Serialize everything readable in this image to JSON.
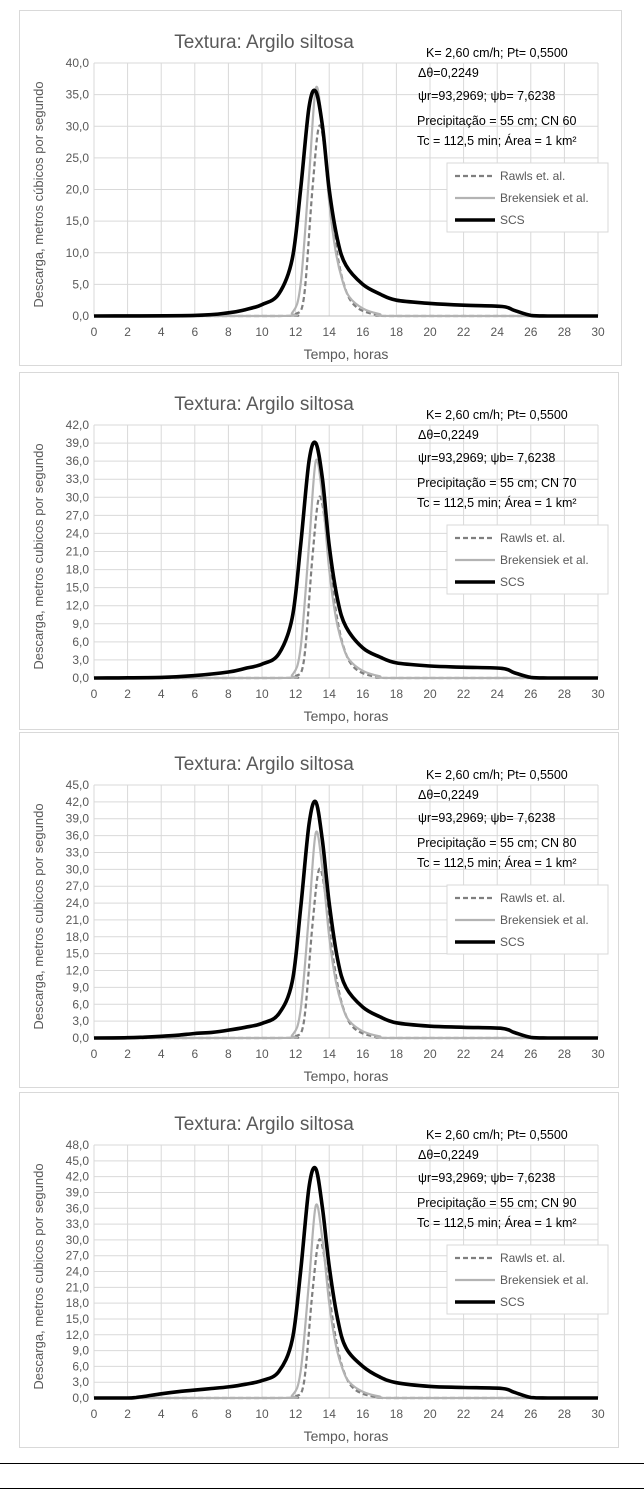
{
  "chart_data": [
    {
      "type": "line",
      "title": "Textura: Argilo siltosa",
      "xlabel": "Tempo, horas",
      "ylabel": "Descarga, metros cúbicos por segundo",
      "xlim": [
        0,
        30
      ],
      "ylim": [
        0,
        40
      ],
      "x_ticks": [
        "0",
        "2",
        "4",
        "6",
        "8",
        "10",
        "12",
        "14",
        "16",
        "18",
        "20",
        "22",
        "24",
        "26",
        "28",
        "30"
      ],
      "y_ticks": [
        "0,0",
        "5,0",
        "10,0",
        "15,0",
        "20,0",
        "25,0",
        "30,0",
        "35,0",
        "40,0"
      ],
      "grid": true,
      "legend_position": "right",
      "annotations": [
        "K= 2,60 cm/h; Pt= 0,5500",
        "Δθ=0,2249",
        "ψr=93,2969;  ψb= 7,6238",
        "Precipitação = 55 cm; CN 60",
        "Tc = 112,5 min; Área = 1 km²"
      ],
      "series": [
        {
          "name": "Rawls et. al.",
          "style": "dashed",
          "color": "#7f7f7f",
          "x": [
            0,
            11,
            12,
            12.5,
            13,
            13.4,
            13.8,
            14.2,
            14.6,
            15,
            15.4,
            16,
            17,
            18,
            30
          ],
          "y": [
            0,
            0,
            0.3,
            3,
            20,
            30,
            25,
            15,
            8,
            4,
            2,
            0.8,
            0.1,
            0,
            0
          ]
        },
        {
          "name": "Brekensiek et al.",
          "style": "solid",
          "color": "#b3b3b3",
          "x": [
            0,
            11,
            11.8,
            12.3,
            12.8,
            13.2,
            13.6,
            14,
            14.4,
            14.8,
            15.2,
            16,
            17,
            18,
            30
          ],
          "y": [
            0,
            0,
            0.5,
            5,
            22,
            36,
            30,
            18,
            10,
            5.5,
            3,
            1.2,
            0.3,
            0,
            0
          ]
        },
        {
          "name": "SCS",
          "style": "solid",
          "color": "#000000",
          "x": [
            0,
            6,
            8,
            9,
            10,
            11,
            11.8,
            12.3,
            12.8,
            13.2,
            13.6,
            14,
            14.5,
            15,
            16,
            17,
            18,
            20,
            22,
            24.3,
            25,
            26,
            27,
            30
          ],
          "y": [
            0,
            0.1,
            0.5,
            1,
            1.8,
            3.5,
            9,
            20,
            33,
            35.5,
            30,
            20,
            12,
            8,
            5,
            3.5,
            2.5,
            2,
            1.7,
            1.5,
            0.9,
            0.1,
            0,
            0
          ]
        }
      ]
    },
    {
      "type": "line",
      "title": "Textura: Argilo siltosa",
      "xlabel": "Tempo, horas",
      "ylabel": "Descarga, metros cubicos por segundo",
      "xlim": [
        0,
        30
      ],
      "ylim": [
        0,
        42
      ],
      "x_ticks": [
        "0",
        "2",
        "4",
        "6",
        "8",
        "10",
        "12",
        "14",
        "16",
        "18",
        "20",
        "22",
        "24",
        "26",
        "28",
        "30"
      ],
      "y_ticks": [
        "0,0",
        "3,0",
        "6,0",
        "9,0",
        "12,0",
        "15,0",
        "18,0",
        "21,0",
        "24,0",
        "27,0",
        "30,0",
        "33,0",
        "36,0",
        "39,0",
        "42,0"
      ],
      "grid": true,
      "legend_position": "right",
      "annotations": [
        "K= 2,60 cm/h; Pt= 0,5500",
        "Δθ=0,2249",
        "ψr=93,2969;  ψb= 7,6238",
        "Precipitação = 55 cm; CN 70",
        "Tc = 112,5 min; Área = 1 km²"
      ],
      "series": [
        {
          "name": "Rawls et. al.",
          "style": "dashed",
          "color": "#7f7f7f",
          "x": [
            0,
            11,
            12,
            12.5,
            13,
            13.4,
            13.8,
            14.2,
            14.6,
            15,
            15.4,
            16,
            17,
            18,
            30
          ],
          "y": [
            0,
            0,
            0.3,
            3,
            20,
            30,
            25,
            15,
            8,
            4,
            2,
            0.8,
            0.1,
            0,
            0
          ]
        },
        {
          "name": "Brekensiek et al.",
          "style": "solid",
          "color": "#b3b3b3",
          "x": [
            0,
            11,
            11.8,
            12.3,
            12.8,
            13.2,
            13.6,
            14,
            14.4,
            14.8,
            15.2,
            16,
            17,
            18,
            30
          ],
          "y": [
            0,
            0,
            0.5,
            5,
            22,
            36,
            30,
            18,
            10,
            5.5,
            3,
            1.2,
            0.3,
            0,
            0
          ]
        },
        {
          "name": "SCS",
          "style": "solid",
          "color": "#000000",
          "x": [
            0,
            4,
            6,
            8,
            9,
            10,
            11,
            11.8,
            12.3,
            12.8,
            13.2,
            13.6,
            14,
            14.5,
            15,
            16,
            17,
            18,
            20,
            22,
            24.3,
            25,
            26,
            27,
            30
          ],
          "y": [
            0,
            0.1,
            0.4,
            1,
            1.6,
            2.3,
            4,
            10,
            22,
            36,
            39,
            33,
            22,
            13,
            8.5,
            5,
            3.5,
            2.5,
            2,
            1.8,
            1.6,
            0.9,
            0.1,
            0,
            0
          ]
        }
      ]
    },
    {
      "type": "line",
      "title": "Textura: Argilo siltosa",
      "xlabel": "Tempo, horas",
      "ylabel": "Descarga, metros cubicos por segundo",
      "xlim": [
        0,
        30
      ],
      "ylim": [
        0,
        45
      ],
      "x_ticks": [
        "0",
        "2",
        "4",
        "6",
        "8",
        "10",
        "12",
        "14",
        "16",
        "18",
        "20",
        "22",
        "24",
        "26",
        "28",
        "30"
      ],
      "y_ticks": [
        "0,0",
        "3,0",
        "6,0",
        "9,0",
        "12,0",
        "15,0",
        "18,0",
        "21,0",
        "24,0",
        "27,0",
        "30,0",
        "33,0",
        "36,0",
        "39,0",
        "42,0",
        "45,0"
      ],
      "grid": true,
      "legend_position": "right",
      "annotations": [
        "K= 2,60 cm/h; Pt= 0,5500",
        "Δθ=0,2249",
        "ψr=93,2969;  ψb= 7,6238",
        "Precipitação = 55 cm; CN 80",
        "Tc = 112,5 min; Área = 1 km²"
      ],
      "series": [
        {
          "name": "Rawls et. al.",
          "style": "dashed",
          "color": "#7f7f7f",
          "x": [
            0,
            11,
            12,
            12.5,
            13,
            13.4,
            13.8,
            14.2,
            14.6,
            15,
            15.4,
            16,
            17,
            18,
            30
          ],
          "y": [
            0,
            0,
            0.3,
            3,
            20,
            30,
            25,
            15,
            8,
            4,
            2,
            0.8,
            0.1,
            0,
            0
          ]
        },
        {
          "name": "Brekensiek et al.",
          "style": "solid",
          "color": "#b3b3b3",
          "x": [
            0,
            11,
            11.8,
            12.3,
            12.8,
            13.2,
            13.6,
            14,
            14.4,
            14.8,
            15.2,
            16,
            17,
            18,
            30
          ],
          "y": [
            0,
            0,
            0.5,
            5,
            22,
            36.5,
            30,
            18,
            10,
            5.5,
            3,
            1.2,
            0.3,
            0,
            0
          ]
        },
        {
          "name": "SCS",
          "style": "solid",
          "color": "#000000",
          "x": [
            0,
            2,
            3,
            4,
            5,
            6,
            7,
            8,
            9,
            10,
            11,
            11.8,
            12.3,
            12.8,
            13.2,
            13.6,
            14,
            14.5,
            15,
            16,
            17,
            18,
            20,
            22,
            24.3,
            25,
            26,
            27,
            30
          ],
          "y": [
            0,
            0.05,
            0.15,
            0.3,
            0.5,
            0.8,
            1,
            1.4,
            1.9,
            2.6,
            4.3,
            10,
            23,
            38,
            42,
            35,
            24,
            14,
            9,
            5.5,
            3.8,
            2.7,
            2.1,
            1.9,
            1.7,
            1,
            0.1,
            0,
            0
          ]
        }
      ]
    },
    {
      "type": "line",
      "title": "Textura: Argilo siltosa",
      "xlabel": "Tempo, horas",
      "ylabel": "Descarga, metros cubicos por segundo",
      "xlim": [
        0,
        30
      ],
      "ylim": [
        0,
        48
      ],
      "x_ticks": [
        "0",
        "2",
        "4",
        "6",
        "8",
        "10",
        "12",
        "14",
        "16",
        "18",
        "20",
        "22",
        "24",
        "26",
        "28",
        "30"
      ],
      "y_ticks": [
        "0,0",
        "3,0",
        "6,0",
        "9,0",
        "12,0",
        "15,0",
        "18,0",
        "21,0",
        "24,0",
        "27,0",
        "30,0",
        "33,0",
        "36,0",
        "39,0",
        "42,0",
        "45,0",
        "48,0"
      ],
      "grid": true,
      "legend_position": "right",
      "annotations": [
        "K= 2,60 cm/h; Pt= 0,5500",
        "Δθ=0,2249",
        "ψr=93,2969;  ψb= 7,6238",
        "Precipitação = 55 cm; CN 90",
        "Tc = 112,5 min; Área = 1 km²"
      ],
      "series": [
        {
          "name": "Rawls et. al.",
          "style": "dashed",
          "color": "#7f7f7f",
          "x": [
            0,
            11,
            12,
            12.5,
            13,
            13.4,
            13.8,
            14.2,
            14.6,
            15,
            15.4,
            16,
            17,
            18,
            30
          ],
          "y": [
            0,
            0,
            0.3,
            3,
            20,
            30,
            25,
            15,
            8,
            4,
            2,
            0.8,
            0.1,
            0,
            0
          ]
        },
        {
          "name": "Brekensiek et al.",
          "style": "solid",
          "color": "#b3b3b3",
          "x": [
            0,
            11,
            11.8,
            12.3,
            12.8,
            13.2,
            13.6,
            14,
            14.4,
            14.8,
            15.2,
            16,
            17,
            18,
            30
          ],
          "y": [
            0,
            0,
            0.5,
            5,
            22,
            36.5,
            30,
            18,
            10,
            5.5,
            3,
            1.2,
            0.3,
            0,
            0
          ]
        },
        {
          "name": "SCS",
          "style": "solid",
          "color": "#000000",
          "x": [
            0,
            2,
            2.5,
            3,
            4,
            5,
            6,
            7,
            8,
            9,
            10,
            11,
            11.8,
            12.3,
            12.8,
            13.2,
            13.6,
            14,
            14.5,
            15,
            16,
            17,
            18,
            20,
            22,
            24.3,
            25,
            26,
            27,
            30
          ],
          "y": [
            0,
            0,
            0.1,
            0.3,
            0.8,
            1.2,
            1.5,
            1.8,
            2.1,
            2.6,
            3.3,
            5,
            11,
            24,
            40,
            43.5,
            36,
            25,
            15,
            9.5,
            6,
            4,
            2.9,
            2.2,
            2,
            1.8,
            1.1,
            0.1,
            0,
            0
          ]
        }
      ]
    }
  ]
}
